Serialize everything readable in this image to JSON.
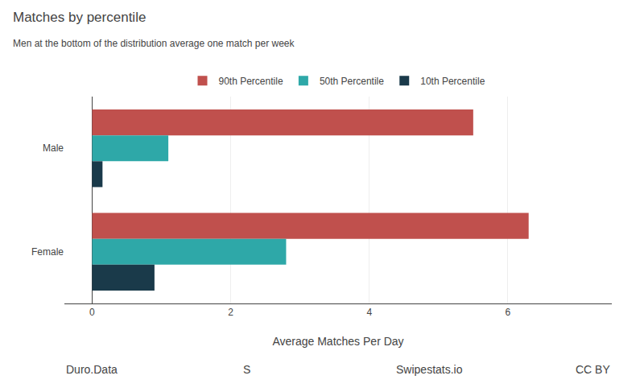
{
  "chart_data": {
    "type": "bar",
    "orientation": "horizontal",
    "title": "Matches by percentile",
    "subtitle": "Men at the bottom of the distribution average one match per week",
    "categories": [
      "Male",
      "Female"
    ],
    "series": [
      {
        "name": "90th Percentile",
        "color": "#c0504d",
        "values": [
          5.5,
          6.3
        ]
      },
      {
        "name": "50th Percentile",
        "color": "#2ea8a8",
        "values": [
          1.1,
          2.8
        ]
      },
      {
        "name": "10th Percentile",
        "color": "#1a3a4a",
        "values": [
          0.15,
          0.9
        ]
      }
    ],
    "xlabel": "Average Matches Per Day",
    "xlim": [
      -0.4,
      7.5
    ],
    "xticks": [
      0,
      2,
      4,
      6
    ],
    "grid": true,
    "legend": "top",
    "annotations": [
      "Duro.Data",
      "S",
      "Swipestats.io",
      "CC BY"
    ]
  }
}
